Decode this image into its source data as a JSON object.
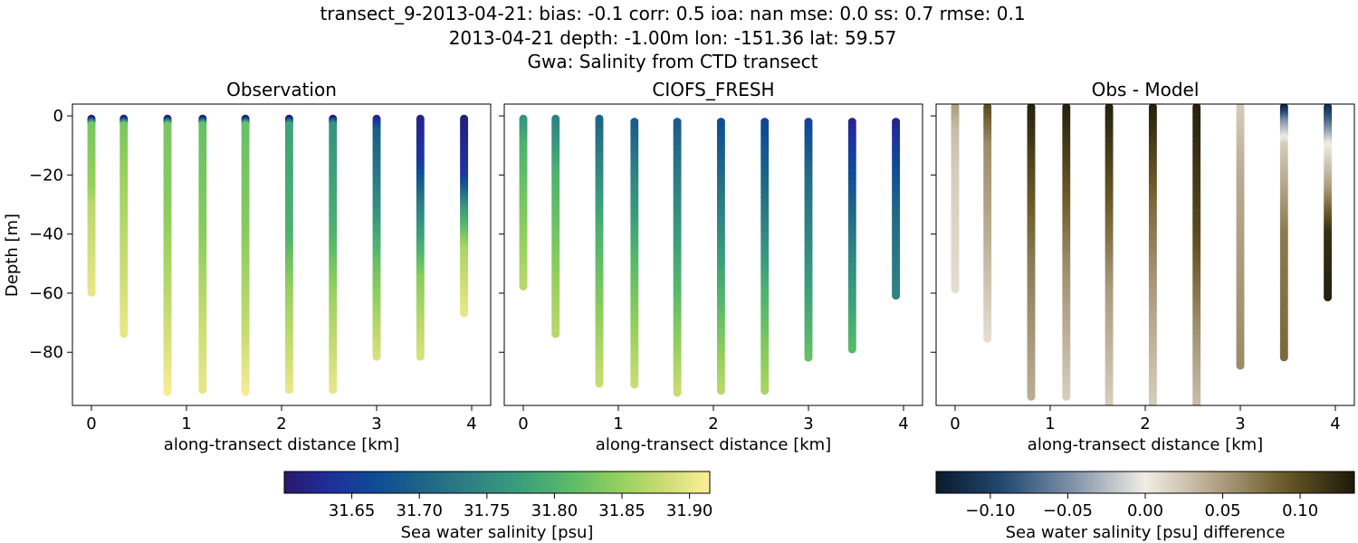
{
  "figure": {
    "title_lines": [
      "transect_9-2013-04-21: bias: -0.1  corr: 0.5  ioa: nan  mse: 0.0  ss: 0.7  rmse: 0.1",
      "2013-04-21 depth: -1.00m lon: -151.36 lat: 59.57",
      "Gwa: Salinity from CTD transect"
    ],
    "colorbars": [
      {
        "label": "Sea water salinity [psu]",
        "colormap": "haline",
        "range": [
          31.6,
          31.915
        ],
        "ticks": [
          31.65,
          31.7,
          31.75,
          31.8,
          31.85,
          31.9
        ],
        "tick_labels": [
          "31.65",
          "31.70",
          "31.75",
          "31.80",
          "31.85",
          "31.90"
        ]
      },
      {
        "label": "Sea water salinity [psu] difference",
        "colormap": "diff",
        "range": [
          -0.135,
          0.135
        ],
        "ticks": [
          -0.1,
          -0.05,
          0.0,
          0.05,
          0.1
        ],
        "tick_labels": [
          "−0.10",
          "−0.05",
          "0.00",
          "0.05",
          "0.10"
        ]
      }
    ]
  },
  "chart_data": [
    {
      "type": "scatter",
      "title": "Observation",
      "xlabel": "along-transect distance [km]",
      "ylabel": "Depth [m]",
      "xlim": [
        -0.2,
        4.2
      ],
      "ylim": [
        -98,
        4
      ],
      "xticks": [
        0,
        1,
        2,
        3,
        4
      ],
      "yticks": [
        0,
        -20,
        -40,
        -60,
        -80
      ],
      "ytick_labels": [
        "0",
        "−20",
        "−40",
        "−60",
        "−80"
      ],
      "colorbar": 0,
      "profiles": [
        {
          "x": 0.0,
          "top": -1,
          "bottom": -60,
          "stops": [
            [
              -1,
              31.6
            ],
            [
              -3,
              31.83
            ],
            [
              -25,
              31.85
            ],
            [
              -30,
              31.87
            ],
            [
              -60,
              31.9
            ]
          ]
        },
        {
          "x": 0.34,
          "top": -1,
          "bottom": -74,
          "stops": [
            [
              -1,
              31.6
            ],
            [
              -3,
              31.83
            ],
            [
              -20,
              31.85
            ],
            [
              -40,
              31.87
            ],
            [
              -74,
              31.9
            ]
          ]
        },
        {
          "x": 0.8,
          "top": -1,
          "bottom": -94,
          "stops": [
            [
              -1,
              31.6
            ],
            [
              -3,
              31.83
            ],
            [
              -30,
              31.84
            ],
            [
              -60,
              31.87
            ],
            [
              -94,
              31.91
            ]
          ]
        },
        {
          "x": 1.17,
          "top": -1,
          "bottom": -93,
          "stops": [
            [
              -1,
              31.6
            ],
            [
              -3,
              31.82
            ],
            [
              -40,
              31.84
            ],
            [
              -70,
              31.88
            ],
            [
              -93,
              31.9
            ]
          ]
        },
        {
          "x": 1.62,
          "top": -1,
          "bottom": -94,
          "stops": [
            [
              -1,
              31.6
            ],
            [
              -3,
              31.82
            ],
            [
              -40,
              31.84
            ],
            [
              -75,
              31.88
            ],
            [
              -94,
              31.91
            ]
          ]
        },
        {
          "x": 2.08,
          "top": -1,
          "bottom": -93,
          "stops": [
            [
              -1,
              31.6
            ],
            [
              -3,
              31.78
            ],
            [
              -40,
              31.8
            ],
            [
              -60,
              31.85
            ],
            [
              -93,
              31.9
            ]
          ]
        },
        {
          "x": 2.54,
          "top": -1,
          "bottom": -93,
          "stops": [
            [
              -1,
              31.6
            ],
            [
              -3,
              31.76
            ],
            [
              -40,
              31.8
            ],
            [
              -60,
              31.85
            ],
            [
              -93,
              31.9
            ]
          ]
        },
        {
          "x": 3.0,
          "top": -1,
          "bottom": -82,
          "stops": [
            [
              -1,
              31.62
            ],
            [
              -5,
              31.69
            ],
            [
              -30,
              31.75
            ],
            [
              -50,
              31.82
            ],
            [
              -82,
              31.89
            ]
          ]
        },
        {
          "x": 3.46,
          "top": -1,
          "bottom": -82,
          "stops": [
            [
              -1,
              31.62
            ],
            [
              -15,
              31.64
            ],
            [
              -30,
              31.73
            ],
            [
              -55,
              31.84
            ],
            [
              -82,
              31.89
            ]
          ]
        },
        {
          "x": 3.92,
          "top": -1,
          "bottom": -67,
          "stops": [
            [
              -1,
              31.61
            ],
            [
              -20,
              31.64
            ],
            [
              -32,
              31.77
            ],
            [
              -45,
              31.86
            ],
            [
              -67,
              31.9
            ]
          ]
        }
      ]
    },
    {
      "type": "scatter",
      "title": "CIOFS_FRESH",
      "xlabel": "along-transect distance [km]",
      "ylabel": "",
      "xlim": [
        -0.2,
        4.2
      ],
      "ylim": [
        -98,
        4
      ],
      "xticks": [
        0,
        1,
        2,
        3,
        4
      ],
      "yticks": [
        0,
        -20,
        -40,
        -60,
        -80
      ],
      "colorbar": 0,
      "profiles": [
        {
          "x": 0.0,
          "top": -1,
          "bottom": -58,
          "stops": [
            [
              -1,
              31.76
            ],
            [
              -10,
              31.8
            ],
            [
              -30,
              31.83
            ],
            [
              -58,
              31.87
            ]
          ]
        },
        {
          "x": 0.34,
          "top": -1,
          "bottom": -74,
          "stops": [
            [
              -1,
              31.74
            ],
            [
              -20,
              31.8
            ],
            [
              -50,
              31.84
            ],
            [
              -74,
              31.87
            ]
          ]
        },
        {
          "x": 0.8,
          "top": -1,
          "bottom": -91,
          "stops": [
            [
              -1,
              31.7
            ],
            [
              -20,
              31.75
            ],
            [
              -40,
              31.8
            ],
            [
              -91,
              31.88
            ]
          ]
        },
        {
          "x": 1.17,
          "top": -2,
          "bottom": -91,
          "stops": [
            [
              -2,
              31.69
            ],
            [
              -20,
              31.74
            ],
            [
              -50,
              31.81
            ],
            [
              -91,
              31.88
            ]
          ]
        },
        {
          "x": 1.62,
          "top": -2,
          "bottom": -94,
          "stops": [
            [
              -2,
              31.69
            ],
            [
              -30,
              31.75
            ],
            [
              -60,
              31.81
            ],
            [
              -94,
              31.88
            ]
          ]
        },
        {
          "x": 2.08,
          "top": -2,
          "bottom": -93,
          "stops": [
            [
              -2,
              31.67
            ],
            [
              -30,
              31.73
            ],
            [
              -60,
              31.8
            ],
            [
              -93,
              31.87
            ]
          ]
        },
        {
          "x": 2.54,
          "top": -2,
          "bottom": -93,
          "stops": [
            [
              -2,
              31.66
            ],
            [
              -30,
              31.72
            ],
            [
              -60,
              31.8
            ],
            [
              -93,
              31.86
            ]
          ]
        },
        {
          "x": 3.0,
          "top": -2,
          "bottom": -82,
          "stops": [
            [
              -2,
              31.66
            ],
            [
              -20,
              31.71
            ],
            [
              -50,
              31.76
            ],
            [
              -82,
              31.82
            ]
          ]
        },
        {
          "x": 3.46,
          "top": -2,
          "bottom": -79,
          "stops": [
            [
              -2,
              31.62
            ],
            [
              -20,
              31.67
            ],
            [
              -50,
              31.75
            ],
            [
              -79,
              31.81
            ]
          ]
        },
        {
          "x": 3.92,
          "top": -2,
          "bottom": -61,
          "stops": [
            [
              -2,
              31.62
            ],
            [
              -15,
              31.66
            ],
            [
              -35,
              31.71
            ],
            [
              -61,
              31.74
            ]
          ]
        }
      ]
    },
    {
      "type": "scatter",
      "title": "Obs - Model",
      "xlabel": "along-transect distance [km]",
      "ylabel": "",
      "xlim": [
        -0.2,
        4.2
      ],
      "ylim": [
        -98,
        4
      ],
      "xticks": [
        0,
        1,
        2,
        3,
        4
      ],
      "yticks": [
        0,
        -20,
        -40,
        -60,
        -80
      ],
      "colorbar": 1,
      "profiles": [
        {
          "x": 0.0,
          "top": 3,
          "bottom": -59,
          "stops": [
            [
              3,
              0.05
            ],
            [
              -5,
              0.03
            ],
            [
              -20,
              0.02
            ],
            [
              -59,
              0.01
            ]
          ]
        },
        {
          "x": 0.34,
          "top": 3,
          "bottom": -76,
          "stops": [
            [
              3,
              0.1
            ],
            [
              -10,
              0.06
            ],
            [
              -40,
              0.04
            ],
            [
              -76,
              0.01
            ]
          ]
        },
        {
          "x": 0.8,
          "top": 3,
          "bottom": -95,
          "stops": [
            [
              3,
              0.13
            ],
            [
              -20,
              0.1
            ],
            [
              -50,
              0.07
            ],
            [
              -95,
              0.04
            ]
          ]
        },
        {
          "x": 1.17,
          "top": 3,
          "bottom": -95,
          "stops": [
            [
              3,
              0.13
            ],
            [
              -20,
              0.1
            ],
            [
              -50,
              0.06
            ],
            [
              -95,
              0.02
            ]
          ]
        },
        {
          "x": 1.62,
          "top": 3,
          "bottom": -98,
          "stops": [
            [
              3,
              0.13
            ],
            [
              -30,
              0.09
            ],
            [
              -60,
              0.05
            ],
            [
              -98,
              0.02
            ]
          ]
        },
        {
          "x": 2.08,
          "top": 3,
          "bottom": -98,
          "stops": [
            [
              3,
              0.13
            ],
            [
              -30,
              0.08
            ],
            [
              -60,
              0.05
            ],
            [
              -98,
              0.02
            ]
          ]
        },
        {
          "x": 2.54,
          "top": 3,
          "bottom": -98,
          "stops": [
            [
              3,
              0.13
            ],
            [
              -40,
              0.1
            ],
            [
              -70,
              0.06
            ],
            [
              -98,
              0.03
            ]
          ]
        },
        {
          "x": 3.0,
          "top": 3,
          "bottom": -85,
          "stops": [
            [
              3,
              0.02
            ],
            [
              -20,
              0.04
            ],
            [
              -50,
              0.05
            ],
            [
              -85,
              0.06
            ]
          ]
        },
        {
          "x": 3.46,
          "top": 3,
          "bottom": -82,
          "stops": [
            [
              3,
              -0.13
            ],
            [
              -2,
              -0.05
            ],
            [
              -10,
              0.02
            ],
            [
              -40,
              0.07
            ],
            [
              -82,
              0.08
            ]
          ]
        },
        {
          "x": 3.92,
          "top": 3,
          "bottom": -62,
          "stops": [
            [
              3,
              -0.12
            ],
            [
              -10,
              0.0
            ],
            [
              -25,
              0.05
            ],
            [
              -40,
              0.12
            ],
            [
              -62,
              0.13
            ]
          ]
        }
      ]
    }
  ]
}
